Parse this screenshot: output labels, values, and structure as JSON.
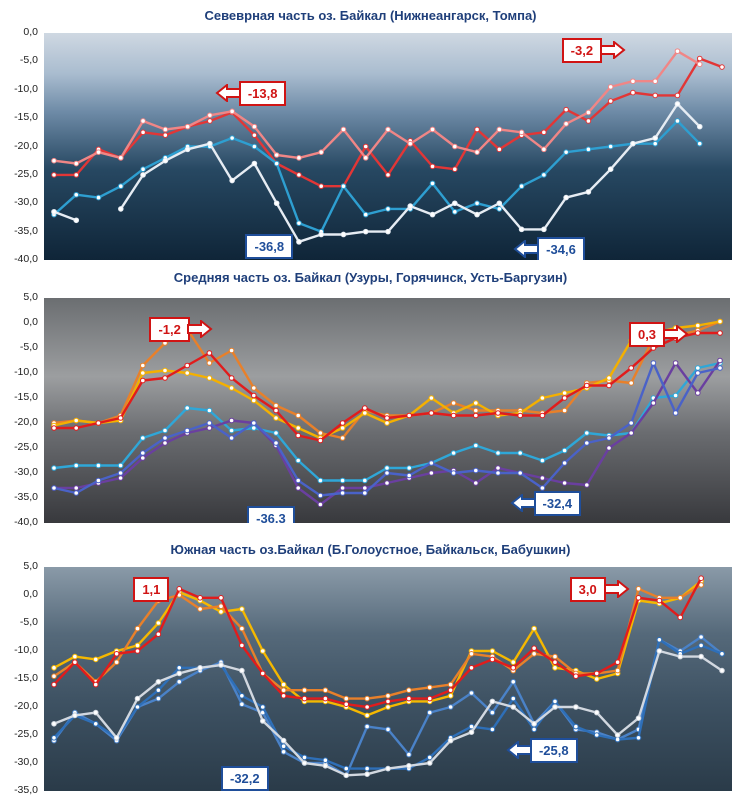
{
  "chart_data": [
    {
      "type": "line",
      "title": "Севеврная часть оз. Байкал (Нижнеангарск, Томпа)",
      "ylim": [
        -40,
        0
      ],
      "yticks": [
        "0,0",
        "-5,0",
        "-10,0",
        "-15,0",
        "-20,0",
        "-25,0",
        "-30,0",
        "-35,0",
        "-40,0"
      ],
      "background": "ice-photo",
      "series": [
        {
          "color": "#e23636",
          "values": [
            -25,
            -25,
            -20.5,
            -22,
            -17.5,
            -18,
            -16.5,
            -15.5,
            -14,
            -18,
            -23,
            -25,
            -27,
            -27,
            -20,
            -25,
            -19,
            -23.5,
            -24,
            -17,
            -20.5,
            -18,
            -17.5,
            -13.5,
            -15.5,
            -12,
            -10.5,
            -11,
            -11,
            -4.5,
            -6
          ]
        },
        {
          "color": "#f08686",
          "values": [
            -22.5,
            -23,
            -21,
            -22,
            -15.5,
            -17,
            -16.5,
            -14.5,
            -13.8,
            -16.5,
            -21.5,
            -22,
            -21,
            -17,
            -22,
            -17,
            -19.5,
            -17,
            -20,
            -21,
            -17,
            -17.5,
            -20.5,
            -16,
            -14,
            -9.5,
            -8.5,
            -8.5,
            -3.2,
            -5.5
          ]
        },
        {
          "color": "#2e9fd1",
          "values": [
            -32,
            -28.5,
            -29,
            -27,
            -24,
            -22,
            -20,
            -20,
            -18.5,
            -20,
            -23,
            -33.5,
            -35,
            -27,
            -32,
            -31,
            -31,
            -26.5,
            -31.5,
            -30,
            -31,
            -27,
            -25,
            -21,
            -20.5,
            -20,
            -19.5,
            -19.5,
            -15.5,
            -19.5
          ]
        },
        {
          "color": "#e6ecf3",
          "values": [
            -31.5,
            -33,
            null,
            -31,
            -25,
            -22.5,
            -20.5,
            -19.5,
            -26,
            -23,
            -30,
            -36.8,
            -35.5,
            -35.5,
            -35,
            -35,
            -30.5,
            -32,
            -30,
            -32,
            -30,
            -34.6,
            -34.6,
            -29,
            -28,
            -24,
            -19.5,
            -18.5,
            -12.5,
            -16.5
          ]
        }
      ],
      "callouts": [
        {
          "text": "-13,8",
          "style": "red"
        },
        {
          "text": "-3,2",
          "style": "red"
        },
        {
          "text": "-36,8",
          "style": "blue"
        },
        {
          "text": "-34,6",
          "style": "blue"
        }
      ]
    },
    {
      "type": "line",
      "title": "Средняя часть оз. Байкал (Узуры, Горячинск, Усть-Баргузин)",
      "ylim": [
        -40,
        5
      ],
      "yticks": [
        "5,0",
        "0,0",
        "-5,0",
        "-10,0",
        "-15,0",
        "-20,0",
        "-25,0",
        "-30,0",
        "-35,0",
        "-40,0"
      ],
      "background": "bubble-ice-photo",
      "series": [
        {
          "color": "#e8802a",
          "values": [
            -20,
            -19.5,
            -20,
            -18.5,
            -8.5,
            -4,
            -1.2,
            -8,
            -5.5,
            -13,
            -16.5,
            -18.5,
            -22,
            -23,
            -17.5,
            -18.5,
            -18.5,
            -18,
            -16,
            -17.5,
            -17.5,
            -17.5,
            -18,
            -17.5,
            -12,
            -11.5,
            -12,
            -3,
            -2.5,
            -1.5,
            0.3
          ]
        },
        {
          "color": "#f4b000",
          "values": [
            -20.5,
            -19.5,
            -20,
            -19.5,
            -10,
            -9.5,
            -10,
            -11,
            -13,
            -15.5,
            -19,
            -21,
            -23,
            -21,
            -18,
            -20,
            -18.5,
            -15,
            -18,
            -16,
            -18.5,
            -18,
            -15,
            -14,
            -13,
            -11,
            -3.5,
            -2,
            -1,
            -0.5,
            0.3
          ]
        },
        {
          "color": "#e11c1c",
          "values": [
            -21,
            -21,
            -20,
            -19,
            -11.5,
            -11,
            -8.5,
            -6,
            -11,
            -14.5,
            -17.5,
            -22.5,
            -23.5,
            -20,
            -17,
            -19,
            -18.5,
            -18,
            -18.5,
            -18.5,
            -18,
            -18.5,
            -18.5,
            -15,
            -12.5,
            -12.5,
            -9,
            -5,
            -3,
            -2,
            -2
          ]
        },
        {
          "color": "#2fa7d8",
          "values": [
            -29,
            -28.5,
            -28.5,
            -28.5,
            -23,
            -21.5,
            -17,
            -17.5,
            -21.5,
            -21,
            -22,
            -27.5,
            -31.5,
            -31.5,
            -31.5,
            -29,
            -29,
            -28,
            -26,
            -24.5,
            -26,
            -26,
            -27.5,
            -25.5,
            -22,
            -22.5,
            -22,
            -15,
            -14.5,
            -9,
            -8
          ]
        },
        {
          "color": "#6a3fa0",
          "values": [
            -33,
            -33,
            -32,
            -31,
            -27,
            -24,
            -22,
            -21,
            -19.5,
            -20,
            -24.5,
            -33,
            -36.3,
            -33,
            -33,
            -32,
            -31,
            -30,
            -29.5,
            -32,
            -29,
            -30,
            -31,
            -32,
            -32.4,
            -25,
            -22,
            -16,
            -8,
            -14,
            -7.5
          ]
        },
        {
          "color": "#4a62c8",
          "values": [
            -33,
            -34,
            -31.5,
            -30,
            -26,
            -23,
            -21.5,
            -20,
            -23,
            -20,
            -24,
            -31.5,
            -34.5,
            -34,
            -34,
            -30,
            -30.5,
            -28,
            -30,
            -29.5,
            -30,
            -30,
            -33,
            -28,
            -24,
            -23,
            -20,
            -8,
            -18,
            -10,
            -9
          ]
        }
      ],
      "callouts": [
        {
          "text": "-1,2",
          "style": "red"
        },
        {
          "text": "0,3",
          "style": "red"
        },
        {
          "text": "-36,3",
          "style": "blue"
        },
        {
          "text": "-32,4",
          "style": "blue"
        }
      ]
    },
    {
      "type": "line",
      "title": "Южная часть оз.Байкал (Б.Голоустное, Байкальск, Бабушкин)",
      "ylim": [
        -35,
        5
      ],
      "yticks": [
        "5,0",
        "0,0",
        "-5,0",
        "-10,0",
        "-15,0",
        "-20,0",
        "-25,0",
        "-30,0",
        "-35,0"
      ],
      "background": "dark-ice-photo",
      "series": [
        {
          "color": "#f5b800",
          "values": [
            -13,
            -11,
            -11.5,
            -10,
            -9,
            -5,
            0.5,
            -1,
            -3,
            -2.5,
            -10,
            -16,
            -19,
            -19,
            -20,
            -21.5,
            -20,
            -19,
            -19,
            -18,
            -10,
            -10,
            -12,
            -6,
            -13,
            -13.5,
            -15,
            -14,
            -1,
            -1.5,
            -0.5,
            2.5
          ]
        },
        {
          "color": "#e8802a",
          "values": [
            -14.5,
            -12,
            -15.5,
            -12,
            -6,
            -1,
            0,
            -2.5,
            -2,
            -6,
            -14,
            -17,
            -17,
            -17,
            -18.5,
            -18.5,
            -18,
            -17,
            -16.5,
            -16,
            -10.5,
            -11,
            -13.5,
            -10.5,
            -11,
            -14,
            -14,
            -13.5,
            1.1,
            -0.5,
            -0.5,
            1.8
          ]
        },
        {
          "color": "#e11c1c",
          "values": [
            -16,
            -12,
            -16,
            -10.5,
            -10,
            -7,
            1.1,
            -0.5,
            -0.5,
            -9,
            -14,
            -18,
            -18.5,
            -18.5,
            -19.5,
            -20,
            -19,
            -18.5,
            -18.5,
            -17,
            -13,
            -11.5,
            -13,
            -9.5,
            -12,
            -14.5,
            -14,
            -12,
            -0.5,
            -1,
            -4,
            3.0
          ]
        },
        {
          "color": "#4a82c8",
          "values": [
            -26,
            -21,
            -23,
            -26,
            -20,
            -18.5,
            -15.5,
            -13.5,
            -12,
            -19.5,
            -21,
            -28,
            -30,
            -30,
            -32.2,
            -23.5,
            -24,
            -28.5,
            -21,
            -20,
            -17.5,
            -21,
            -15.5,
            -23,
            -19,
            -24,
            -24.5,
            -25.8,
            -24,
            -8,
            -10,
            -7.5,
            -10.5
          ]
        },
        {
          "color": "#2e6fb8",
          "values": [
            -25.5,
            -21.5,
            -23,
            -25.5,
            -20,
            -17,
            -13,
            -13,
            -12.5,
            -18,
            -20,
            -27,
            -29,
            -29.5,
            -31,
            -31,
            -31,
            -31,
            -29,
            -25.5,
            -23.5,
            -24,
            -18.5,
            -24,
            -19,
            -23.5,
            -25,
            -25.8,
            -25.5,
            -8,
            -10.5,
            -9,
            -10.5
          ]
        },
        {
          "color": "#d2d8e0",
          "values": [
            -23,
            -21.5,
            -21,
            -25.5,
            -18.5,
            -15.5,
            -14,
            -13,
            -12.5,
            -13.5,
            -22.5,
            -26,
            -30,
            -30.5,
            -32.2,
            -32,
            -31,
            -30.5,
            -30,
            -26,
            -24.5,
            -19,
            -20,
            -23,
            -20,
            -20,
            -21,
            -25,
            -22,
            -10,
            -11,
            -11,
            -13.5
          ]
        }
      ],
      "callouts": [
        {
          "text": "1,1",
          "style": "red"
        },
        {
          "text": "3,0",
          "style": "red"
        },
        {
          "text": "-32,2",
          "style": "blue"
        },
        {
          "text": "-25,8",
          "style": "blue"
        }
      ]
    }
  ]
}
